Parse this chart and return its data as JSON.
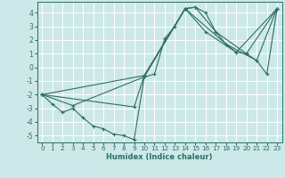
{
  "bg_color": "#cde8e8",
  "grid_color": "#ffffff",
  "line_color": "#2e6e65",
  "xlabel": "Humidex (Indice chaleur)",
  "xlim": [
    -0.5,
    23.5
  ],
  "ylim": [
    -5.5,
    4.8
  ],
  "yticks": [
    -5,
    -4,
    -3,
    -2,
    -1,
    0,
    1,
    2,
    3,
    4
  ],
  "xticks": [
    0,
    1,
    2,
    3,
    4,
    5,
    6,
    7,
    8,
    9,
    10,
    11,
    12,
    13,
    14,
    15,
    16,
    17,
    18,
    19,
    20,
    21,
    22,
    23
  ],
  "series": [
    {
      "x": [
        0,
        1,
        2,
        3,
        4,
        5,
        6,
        7,
        8,
        9,
        10,
        11,
        12,
        13,
        14,
        15,
        16,
        17,
        18,
        19,
        20,
        21,
        22,
        23
      ],
      "y": [
        -2.0,
        -2.7,
        -3.3,
        -3.0,
        -3.7,
        -4.3,
        -4.5,
        -4.9,
        -5.0,
        -5.3,
        -0.7,
        -0.5,
        2.1,
        3.0,
        4.3,
        4.4,
        4.0,
        2.6,
        1.7,
        1.1,
        1.0,
        0.5,
        -0.5,
        4.3
      ]
    },
    {
      "x": [
        0,
        3,
        10,
        14,
        15,
        17,
        20,
        23
      ],
      "y": [
        -2.0,
        -2.8,
        -0.7,
        4.3,
        4.4,
        2.6,
        1.0,
        4.3
      ]
    },
    {
      "x": [
        0,
        9,
        10,
        14,
        18,
        21,
        23
      ],
      "y": [
        -2.0,
        -2.9,
        -0.6,
        4.3,
        1.7,
        0.5,
        4.3
      ]
    },
    {
      "x": [
        0,
        10,
        14,
        16,
        19,
        23
      ],
      "y": [
        -2.0,
        -0.6,
        4.3,
        2.6,
        1.1,
        4.3
      ]
    }
  ]
}
